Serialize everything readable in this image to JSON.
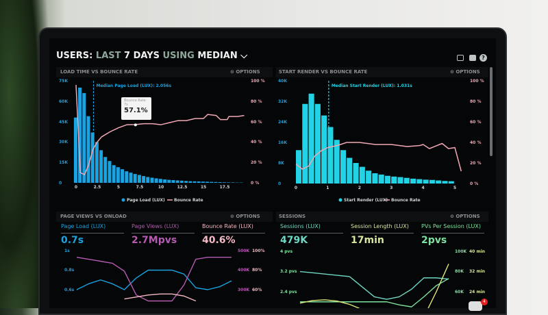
{
  "header": {
    "title_parts": [
      "USERS:",
      "LAST",
      "7 DAYS",
      "USING",
      "MEDIAN"
    ],
    "icons": [
      "monitor-icon",
      "share-icon",
      "help-icon"
    ]
  },
  "options_label": "OPTIONS",
  "panels": [
    {
      "title": "LOAD TIME VS BOUNCE RATE",
      "chart_data": {
        "type": "bar",
        "left_ticks": [
          "75K",
          "60K",
          "45K",
          "30K",
          "15K",
          "0"
        ],
        "right_ticks": [
          "100 %",
          "80 %",
          "60 %",
          "40 %",
          "20 %",
          "0 %"
        ],
        "x_ticks": [
          "0",
          "2.5",
          "5",
          "7.5",
          "10",
          "12.5",
          "15",
          "17.5"
        ],
        "ylim": [
          0,
          75000
        ],
        "y2lim": [
          0,
          100
        ],
        "median_label": "Median Page Load (LUX): 2.056s",
        "median": 2.056,
        "legend": [
          "Page Load (LUX)",
          "Bounce Rate"
        ],
        "bin_width": 0.5,
        "bars": [
          48000,
          70000,
          66000,
          49000,
          37000,
          30000,
          24000,
          19000,
          16000,
          13000,
          11500,
          10000,
          8500,
          7500,
          6500,
          5800,
          5000,
          4300,
          3800,
          3300,
          2900,
          2500,
          2200,
          2000,
          1800,
          1600,
          1400,
          1200,
          1100,
          1000,
          900,
          800,
          700,
          600,
          500,
          400,
          300,
          300,
          200,
          200
        ],
        "line": [
          [
            0,
            96
          ],
          [
            0.5,
            10
          ],
          [
            1,
            8
          ],
          [
            1.5,
            18
          ],
          [
            2,
            33
          ],
          [
            2.5,
            40
          ],
          [
            3,
            45
          ],
          [
            4,
            50
          ],
          [
            5,
            54
          ],
          [
            6,
            57
          ],
          [
            7,
            57.1
          ],
          [
            8,
            58
          ],
          [
            9,
            58
          ],
          [
            10,
            57
          ],
          [
            11,
            59
          ],
          [
            12,
            61
          ],
          [
            13,
            61
          ],
          [
            14,
            63
          ],
          [
            15,
            63
          ],
          [
            15.5,
            67
          ],
          [
            16.5,
            66
          ],
          [
            17,
            62
          ],
          [
            17.8,
            62
          ],
          [
            18,
            65
          ],
          [
            19,
            65
          ],
          [
            19.8,
            66
          ]
        ],
        "tooltip": {
          "title": "Bounce Rate",
          "x": "7s",
          "value": "57.1%"
        },
        "colors": {
          "bars": "#1aa3e0",
          "line": "#f0a8b4"
        }
      }
    },
    {
      "title": "START RENDER VS BOUNCE RATE",
      "chart_data": {
        "type": "bar",
        "left_ticks": [
          "40K",
          "32K",
          "24K",
          "16K",
          "8K",
          "0"
        ],
        "right_ticks": [
          "100 %",
          "80 %",
          "60 %",
          "40 %",
          "20 %",
          "0 %"
        ],
        "x_ticks": [
          "0",
          "1",
          "2",
          "3",
          "4",
          "5"
        ],
        "ylim": [
          0,
          40000
        ],
        "y2lim": [
          0,
          100
        ],
        "median_label": "Median Start Render (LUX): 1.031s",
        "median": 1.031,
        "legend": [
          "Start Render (LUX)",
          "Bounce Rate"
        ],
        "bin_width": 0.2,
        "bars": [
          13000,
          31000,
          35000,
          31000,
          26500,
          22000,
          17000,
          13000,
          10000,
          8000,
          6500,
          5000,
          4000,
          3500,
          3000,
          2700,
          2500,
          2200,
          1900,
          1700,
          1500,
          1400,
          1200,
          1000,
          900
        ],
        "line": [
          [
            0,
            19
          ],
          [
            0.2,
            14
          ],
          [
            0.4,
            17
          ],
          [
            0.6,
            27
          ],
          [
            0.8,
            32
          ],
          [
            1,
            35
          ],
          [
            1.3,
            37
          ],
          [
            1.6,
            40
          ],
          [
            2,
            40
          ],
          [
            2.5,
            38
          ],
          [
            3,
            38
          ],
          [
            3.5,
            36
          ],
          [
            3.9,
            37
          ],
          [
            4,
            38
          ],
          [
            4.2,
            34
          ],
          [
            4.6,
            39
          ],
          [
            4.8,
            34
          ],
          [
            5,
            35
          ],
          [
            5.2,
            12
          ]
        ],
        "colors": {
          "bars": "#22d3e6",
          "line": "#f0a8b4"
        }
      }
    },
    {
      "title": "PAGE VIEWS VS ONLOAD",
      "metrics": [
        {
          "label": "Page Load (LUX)",
          "value": "0.7s",
          "color": "#1aa3e0"
        },
        {
          "label": "Page Views (LUX)",
          "value": "2.7Mpvs",
          "color": "#b45ab0"
        },
        {
          "label": "Bounce Rate (LUX)",
          "value": "40.6%",
          "color": "#f4b8c4"
        }
      ],
      "chart_data": {
        "type": "line",
        "left_ticks": [
          "1s",
          "0.8s",
          "0.6s"
        ],
        "right_ticks_a": [
          "500K",
          "400K",
          "300K"
        ],
        "right_ticks_b": [
          "100%",
          "80%",
          "60%"
        ],
        "series": [
          {
            "values": [
              0.6,
              0.66,
              0.7,
              0.66,
              0.6,
              0.72,
              0.8,
              0.8,
              0.8,
              0.76,
              0.62,
              0.6,
              0.63,
              0.69
            ],
            "axis": "left",
            "color": "#1aa3e0"
          },
          {
            "values": [
              470,
              460,
              450,
              440,
              400,
              280,
              250,
              250,
              250,
              330,
              460,
              470,
              470,
              470
            ],
            "axis": "k",
            "color": "#b45ab0"
          },
          {
            "values": [
              null,
              null,
              null,
              null,
              52,
              54,
              56,
              57,
              57,
              55,
              50,
              null,
              null,
              null
            ],
            "axis": "pct",
            "color": "#f4b8c4"
          }
        ]
      }
    },
    {
      "title": "SESSIONS",
      "metrics": [
        {
          "label": "Sessions (LUX)",
          "value": "479K",
          "color": "#6fd6c4"
        },
        {
          "label": "Session Length (LUX)",
          "value": "17min",
          "color": "#d8e6a0"
        },
        {
          "label": "PVs Per Session (LUX)",
          "value": "2pvs",
          "color": "#7ee3a0"
        }
      ],
      "chart_data": {
        "type": "line",
        "left_ticks": [
          "4 pvs",
          "3.2 pvs",
          "2.4 pvs"
        ],
        "right_ticks_a": [
          "100K",
          "80K",
          "60K"
        ],
        "right_ticks_b": [
          "40 min",
          "32 min",
          "24 min"
        ],
        "series": [
          {
            "values": [
              3.2,
              3.15,
              3.1,
              3.05,
              3.0,
              2.6,
              2.2,
              2.1,
              2.2,
              2.5,
              2.95,
              2.95,
              2.9
            ],
            "axis": "left",
            "color": "#6fd6c4"
          },
          {
            "values": [
              50,
              50,
              50,
              50,
              50,
              50,
              50,
              50,
              47,
              45,
              55,
              66,
              73
            ],
            "axis": "k",
            "color": "#7ee3a0"
          },
          {
            "values": [
              19.5,
              20.5,
              20.8,
              20.3,
              19,
              17,
              15,
              14,
              13,
              12,
              14,
              24,
              35
            ],
            "axis": "min",
            "color": "#e0e67a"
          }
        ]
      }
    }
  ],
  "chat_badge": "4"
}
